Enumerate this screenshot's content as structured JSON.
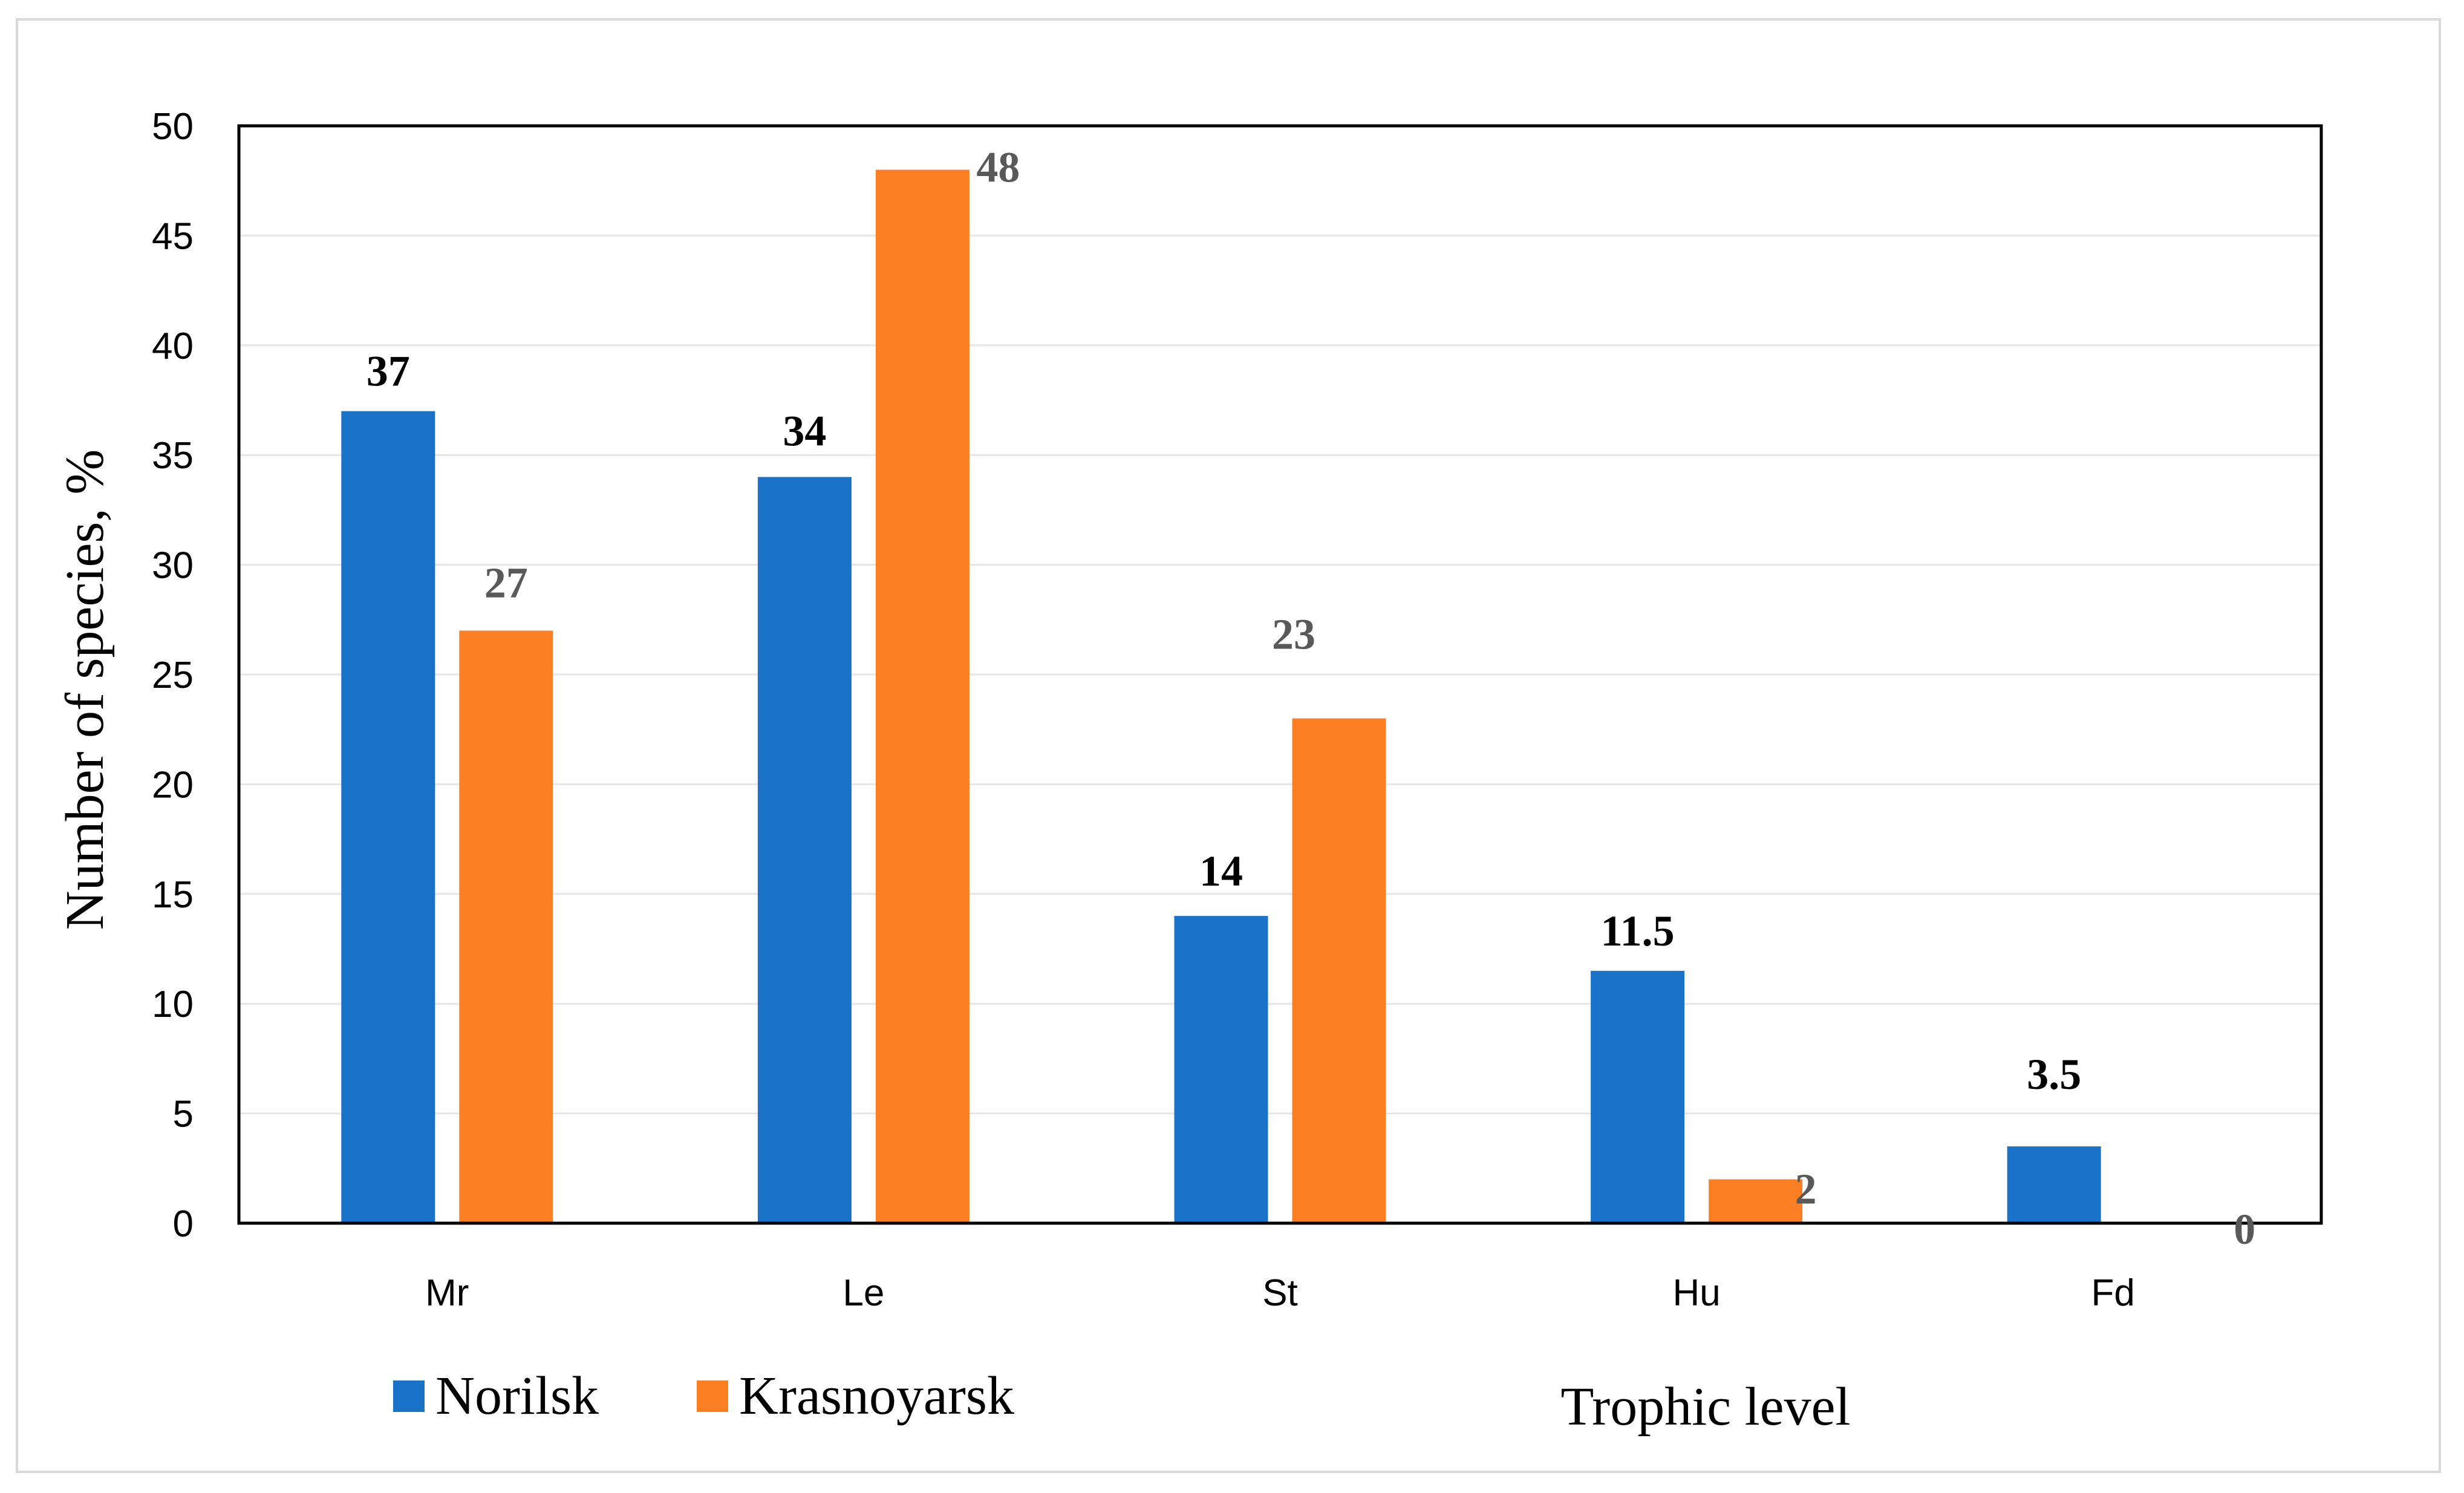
{
  "chart_data": {
    "type": "bar",
    "title": "",
    "xlabel": "Trophic level",
    "ylabel": "Number of species, %",
    "categories": [
      "Mr",
      "Le",
      "St",
      "Hu",
      "Fd"
    ],
    "ylim": [
      0,
      50
    ],
    "yticks": [
      0,
      5,
      10,
      15,
      20,
      25,
      30,
      35,
      40,
      45,
      50
    ],
    "grid": true,
    "legend_position": "bottom-left",
    "series": [
      {
        "name": "Norilsk",
        "color": "#1a73c9",
        "values": [
          37,
          34,
          14,
          11.5,
          3.5
        ],
        "labels": [
          "37",
          "34",
          "14",
          "11.5",
          "3.5"
        ]
      },
      {
        "name": "Krasnoyarsk",
        "color": "#fd7f23",
        "values": [
          27,
          48,
          23,
          2,
          0
        ],
        "labels": [
          "27",
          "48",
          "23",
          "2",
          "0"
        ]
      }
    ]
  }
}
